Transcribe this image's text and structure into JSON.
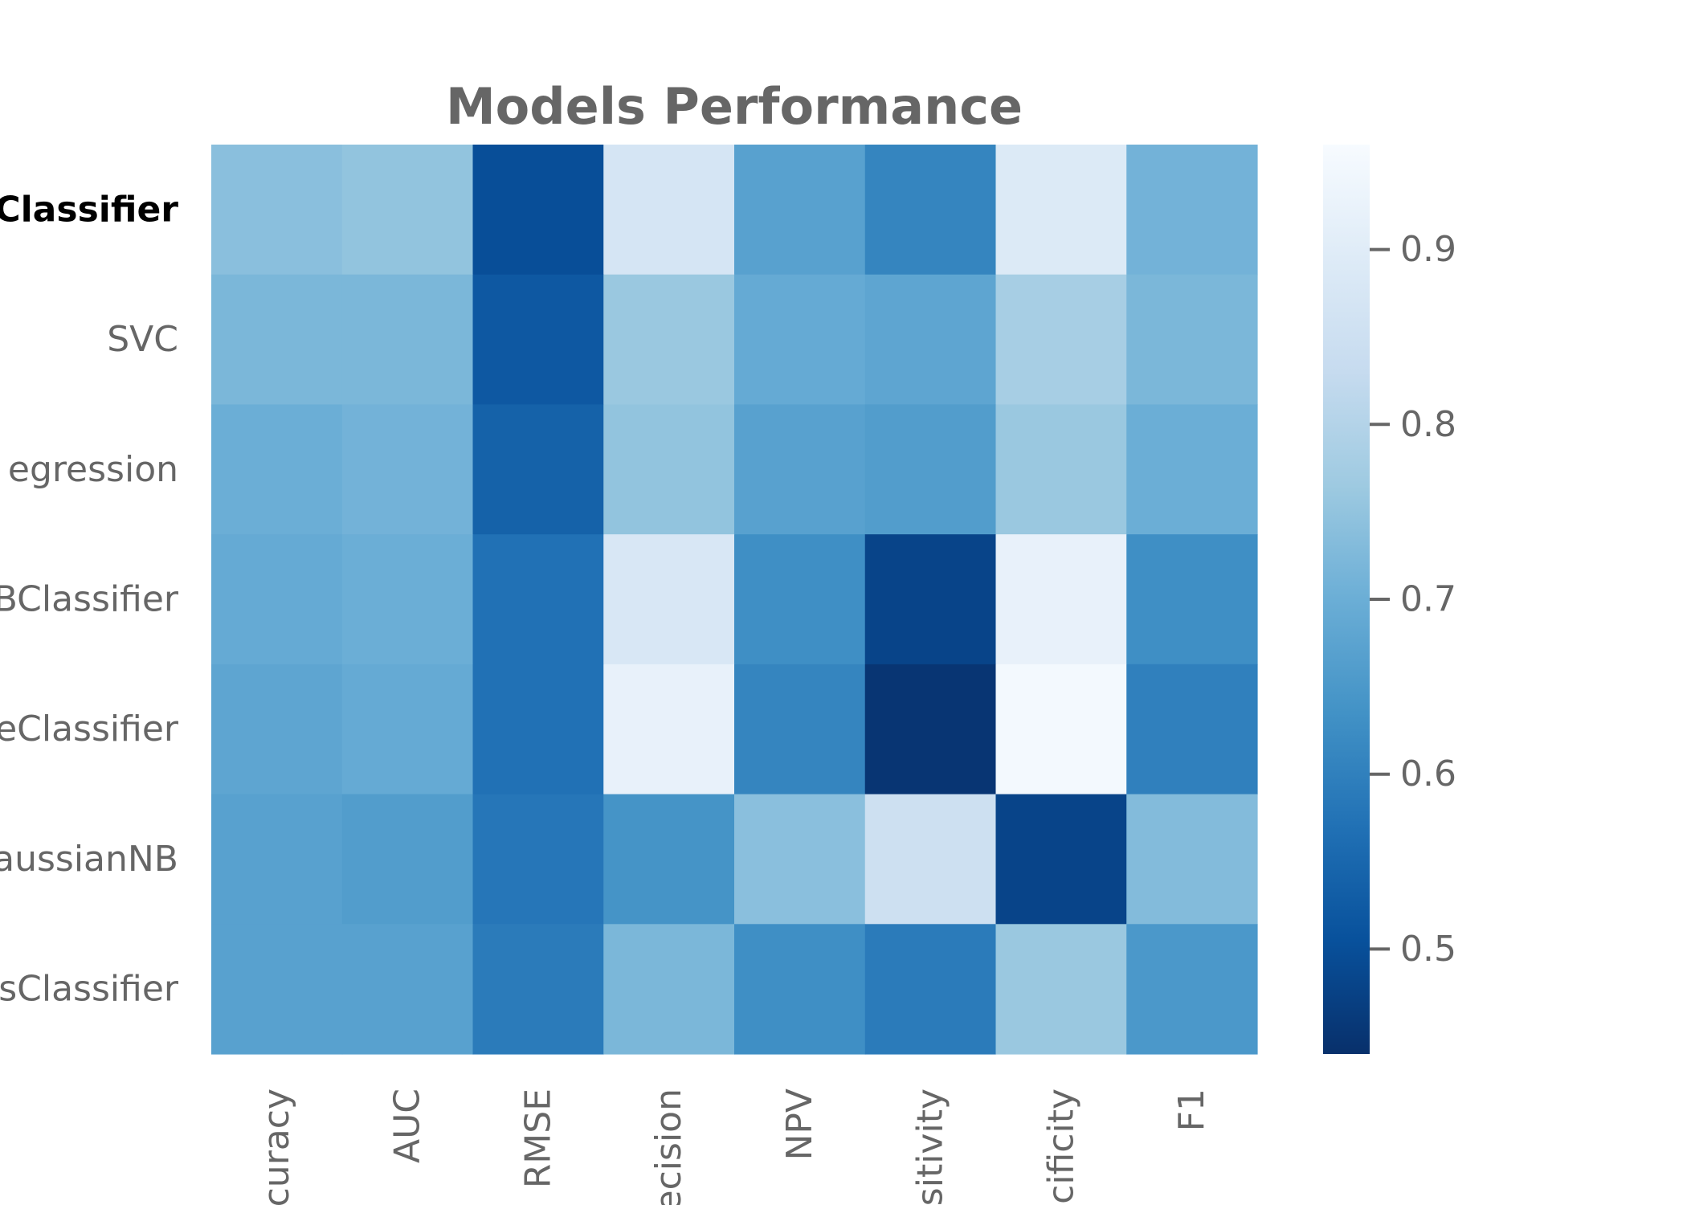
{
  "chart_data": {
    "type": "heatmap",
    "title": "Models Performance",
    "rows": [
      "Classifier",
      "SVC",
      "egression",
      "BClassifier",
      "eClassifier",
      "aussianNB",
      "sClassifier"
    ],
    "highlighted_row": 0,
    "columns": [
      "curacy",
      "AUC",
      "RMSE",
      "ecision",
      "NPV",
      "sitivity",
      "cificity",
      "F1"
    ],
    "values": [
      [
        0.74,
        0.75,
        0.5,
        0.87,
        0.67,
        0.61,
        0.89,
        0.71
      ],
      [
        0.72,
        0.72,
        0.52,
        0.76,
        0.69,
        0.68,
        0.78,
        0.72
      ],
      [
        0.7,
        0.71,
        0.54,
        0.75,
        0.67,
        0.66,
        0.76,
        0.7
      ],
      [
        0.69,
        0.7,
        0.57,
        0.88,
        0.63,
        0.48,
        0.92,
        0.63
      ],
      [
        0.68,
        0.69,
        0.57,
        0.92,
        0.61,
        0.45,
        0.95,
        0.6
      ],
      [
        0.67,
        0.66,
        0.58,
        0.64,
        0.74,
        0.85,
        0.48,
        0.73
      ],
      [
        0.67,
        0.67,
        0.59,
        0.72,
        0.63,
        0.59,
        0.76,
        0.65
      ]
    ],
    "colorscale": "Blues_r",
    "vmin": 0.44,
    "vmax": 0.96,
    "colorbar_ticks": [
      "0.5",
      "0.6",
      "0.7",
      "0.8",
      "0.9"
    ],
    "colorbar_tick_values": [
      0.5,
      0.6,
      0.7,
      0.8,
      0.9
    ],
    "colors": [
      "#08306b",
      "#08519c",
      "#2171b5",
      "#4292c6",
      "#6baed6",
      "#9ecae1",
      "#c6dbef",
      "#deebf7",
      "#f7fbff"
    ],
    "text_color": "#666666",
    "highlight_color": "#000000",
    "grid": false
  }
}
